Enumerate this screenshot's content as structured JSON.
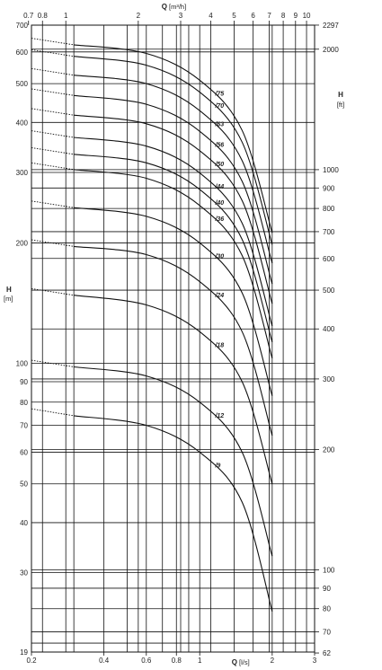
{
  "chart_data": {
    "type": "line",
    "x_scale": "log",
    "y_scale": "log",
    "grid": true,
    "top_axis": {
      "label": "Q",
      "unit": "[m³/h]",
      "ticks": [
        "0.7",
        "0.8",
        "1",
        "2",
        "3",
        "4",
        "5",
        "6",
        "7",
        "8",
        "9",
        "10"
      ],
      "tick_values": [
        0.7,
        0.8,
        1,
        2,
        3,
        4,
        5,
        6,
        7,
        8,
        9,
        10
      ]
    },
    "bottom_axis": {
      "label": "Q",
      "unit": "[l/s]",
      "ticks": [
        "0.2",
        "0.4",
        "0.6",
        "0.8",
        "1",
        "2",
        "3"
      ],
      "tick_values": [
        0.2,
        0.4,
        0.6,
        0.8,
        1,
        2,
        3
      ],
      "xlim": [
        0.2,
        3
      ]
    },
    "left_axis": {
      "label": "H",
      "unit": "[m]",
      "ticks": [
        "700",
        "600",
        "500",
        "400",
        "300",
        "200",
        "100",
        "90",
        "80",
        "70",
        "60",
        "50",
        "40",
        "30",
        "19"
      ],
      "tick_values": [
        700,
        600,
        500,
        400,
        300,
        200,
        100,
        90,
        80,
        70,
        60,
        50,
        40,
        30,
        19
      ],
      "ylim": [
        19,
        700
      ]
    },
    "right_axis": {
      "label": "H",
      "unit": "[ft]",
      "ticks": [
        "2297",
        "2000",
        "1000",
        "900",
        "800",
        "700",
        "600",
        "500",
        "400",
        "300",
        "200",
        "100",
        "90",
        "80",
        "70",
        "62"
      ],
      "tick_values_ft": [
        2297,
        2000,
        1000,
        900,
        800,
        700,
        600,
        500,
        400,
        300,
        200,
        100,
        90,
        80,
        70,
        62
      ]
    },
    "series": [
      {
        "name": "/9",
        "x": [
          0.3,
          0.6,
          1.0,
          1.5,
          2.0
        ],
        "y": [
          74,
          70,
          60,
          45,
          24
        ]
      },
      {
        "name": "/12",
        "x": [
          0.3,
          0.6,
          1.0,
          1.5,
          2.0
        ],
        "y": [
          98,
          93,
          80,
          60,
          33
        ]
      },
      {
        "name": "/18",
        "x": [
          0.3,
          0.6,
          1.0,
          1.5,
          2.0
        ],
        "y": [
          148,
          140,
          120,
          90,
          50
        ]
      },
      {
        "name": "/24",
        "x": [
          0.3,
          0.6,
          1.0,
          1.5,
          2.0
        ],
        "y": [
          196,
          187,
          160,
          120,
          66
        ]
      },
      {
        "name": "/30",
        "x": [
          0.3,
          0.6,
          1.0,
          1.5,
          2.0
        ],
        "y": [
          245,
          233,
          200,
          150,
          83
        ]
      },
      {
        "name": "/36",
        "x": [
          0.3,
          0.6,
          1.0,
          1.5,
          2.0
        ],
        "y": [
          305,
          290,
          248,
          186,
          103
        ]
      },
      {
        "name": "/40",
        "x": [
          0.3,
          0.6,
          1.0,
          1.5,
          2.0
        ],
        "y": [
          333,
          317,
          272,
          204,
          113
        ]
      },
      {
        "name": "/44",
        "x": [
          0.3,
          0.6,
          1.0,
          1.5,
          2.0
        ],
        "y": [
          367,
          349,
          299,
          224,
          124
        ]
      },
      {
        "name": "/50",
        "x": [
          0.3,
          0.6,
          1.0,
          1.5,
          2.0
        ],
        "y": [
          417,
          397,
          340,
          255,
          141
        ]
      },
      {
        "name": "/56",
        "x": [
          0.3,
          0.6,
          1.0,
          1.5,
          2.0
        ],
        "y": [
          467,
          444,
          380,
          285,
          158
        ]
      },
      {
        "name": "/63",
        "x": [
          0.3,
          0.6,
          1.0,
          1.5,
          2.0
        ],
        "y": [
          525,
          500,
          428,
          321,
          178
        ]
      },
      {
        "name": "/70",
        "x": [
          0.3,
          0.6,
          1.0,
          1.5,
          2.0
        ],
        "y": [
          585,
          556,
          476,
          357,
          198
        ]
      },
      {
        "name": "/75",
        "x": [
          0.3,
          0.6,
          1.0,
          1.5,
          2.0
        ],
        "y": [
          625,
          595,
          510,
          382,
          212
        ]
      }
    ]
  }
}
